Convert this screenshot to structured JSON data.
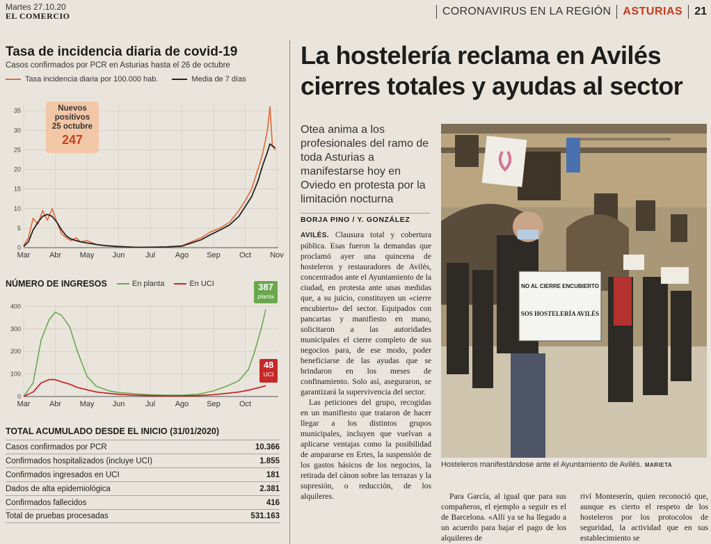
{
  "header": {
    "date": "Martes 27.10.20",
    "publication": "EL COMERCIO",
    "section": "CORONAVIRUS EN LA REGIÓN",
    "region": "ASTURIAS",
    "page": "21"
  },
  "incidence_chart": {
    "title": "Tasa de incidencia diaria de covid-19",
    "subtitle": "Casos confirmados por PCR en Asturias hasta el 26 de octubre",
    "legend_daily": "Tasa incidencia diaria por 100.000 hab.",
    "legend_avg": "Media de 7 días",
    "badge_label_1": "Nuevos",
    "badge_label_2": "positivos",
    "badge_label_3": "25 octubre",
    "badge_value": "247"
  },
  "admissions_chart": {
    "title": "NÚMERO DE INGRESOS",
    "legend_plant": "En planta",
    "legend_icu": "En UCI",
    "plant_value": "387",
    "plant_label": "planta",
    "icu_value": "48",
    "icu_label": "UCI"
  },
  "chart_data": [
    {
      "type": "line",
      "title": "Tasa de incidencia diaria de covid-19",
      "ylim": [
        0,
        37
      ],
      "yticks": [
        "0",
        "5",
        "10",
        "15",
        "20",
        "25",
        "30",
        "35"
      ],
      "xticks": [
        "Mar",
        "Abr",
        "May",
        "Jun",
        "Jul",
        "Ago",
        "Sep",
        "Oct",
        "Nov"
      ],
      "x": [
        0.0,
        0.15,
        0.3,
        0.45,
        0.6,
        0.75,
        0.9,
        1.05,
        1.2,
        1.35,
        1.5,
        1.65,
        1.8,
        2.0,
        2.3,
        2.6,
        3.0,
        3.5,
        4.0,
        4.5,
        5.0,
        5.3,
        5.6,
        5.9,
        6.2,
        6.5,
        6.8,
        7.0,
        7.2,
        7.4,
        7.55,
        7.7,
        7.78,
        7.86,
        7.95
      ],
      "series": [
        {
          "name": "Tasa incidencia diaria por 100.000 hab.",
          "values": [
            0.5,
            2.5,
            7.5,
            6.0,
            9.5,
            7.0,
            10.0,
            6.5,
            3.5,
            2.5,
            1.8,
            2.5,
            1.5,
            1.8,
            0.8,
            0.5,
            0.2,
            0.1,
            0.1,
            0.2,
            0.5,
            1.5,
            2.5,
            4.0,
            5.0,
            6.5,
            9.5,
            12.0,
            15.0,
            20.0,
            24.0,
            30.0,
            36.0,
            26.0,
            25.0
          ]
        },
        {
          "name": "Media de 7 días",
          "values": [
            0.3,
            1.5,
            4.5,
            6.5,
            8.0,
            8.5,
            8.0,
            6.5,
            4.5,
            3.0,
            2.2,
            1.8,
            1.5,
            1.2,
            0.8,
            0.5,
            0.3,
            0.1,
            0.1,
            0.2,
            0.4,
            1.2,
            2.0,
            3.3,
            4.5,
            5.8,
            8.0,
            10.5,
            13.0,
            17.0,
            21.0,
            24.5,
            26.5,
            26.0,
            25.5
          ]
        }
      ]
    },
    {
      "type": "line",
      "title": "NÚMERO DE INGRESOS",
      "ylim": [
        0,
        420
      ],
      "yticks": [
        "0",
        "100",
        "200",
        "300",
        "400"
      ],
      "xticks": [
        "Mar",
        "Abr",
        "May",
        "Jun",
        "Jul",
        "Ago",
        "Sep",
        "Oct"
      ],
      "x": [
        0.0,
        0.3,
        0.55,
        0.8,
        1.0,
        1.2,
        1.45,
        1.7,
        2.0,
        2.3,
        2.7,
        3.0,
        3.5,
        4.0,
        4.5,
        5.0,
        5.5,
        6.0,
        6.4,
        6.8,
        7.1,
        7.3,
        7.5,
        7.65
      ],
      "series": [
        {
          "name": "En planta",
          "values": [
            0,
            60,
            250,
            340,
            375,
            360,
            310,
            200,
            90,
            45,
            25,
            18,
            12,
            8,
            6,
            6,
            10,
            25,
            45,
            70,
            120,
            200,
            300,
            387
          ]
        },
        {
          "name": "En UCI",
          "values": [
            0,
            20,
            60,
            75,
            75,
            65,
            55,
            40,
            30,
            20,
            14,
            10,
            6,
            4,
            3,
            3,
            4,
            8,
            14,
            20,
            28,
            35,
            42,
            48
          ]
        }
      ]
    }
  ],
  "totals": {
    "title": "TOTAL ACUMULADO DESDE EL INICIO (31/01/2020)",
    "rows": [
      {
        "label": "Casos confirmados por PCR",
        "value": "10.366"
      },
      {
        "label": "Confirmados hospitalizados (incluye UCI)",
        "value": "1.855"
      },
      {
        "label": "Confirmados ingresados en UCI",
        "value": "181"
      },
      {
        "label": "Dados de alta epidemiológica",
        "value": "2.381"
      },
      {
        "label": "Confirmados fallecidos",
        "value": "416"
      },
      {
        "label": "Total de pruebas procesadas",
        "value": "531.163"
      }
    ]
  },
  "article": {
    "headline": "La hostelería reclama en Avilés cierres totales y ayudas al sector",
    "deck": "Otea anima a los profesionales del ramo de toda Asturias a manifestarse hoy en Oviedo en protesta por la limitación nocturna",
    "byline": "BORJA PINO / Y. GONZÁLEZ",
    "dateline": "AVILÉS.",
    "p1": "Clausura total y cobertura pública. Esas fueron la demandas que proclamó ayer una quincena de hosteleros y restauradores de Avilés, concentrados ante el Ayuntamiento de la ciudad, en protesta ante unas medidas que, a su juicio, constituyen un «cierre encubierto» del sector. Equipados con pancartas y manifiesto en mano, solicitaron a las autoridades municipales el cierre completo de sus negocios para, de ese modo, poder beneficiarse de las ayudas que se brindaron en los meses de confinamiento. Solo así, aseguraron, se garantizará la supervivencia del sector.",
    "p2": "Las peticiones del grupo, recogidas en un manifiesto que trataron de hacer llegar a los distintos grupos municipales, incluyen que vuelvan a aplicarse ventajas como la posibilidad de ampararse en Ertes, la suspensión de los gastos básicos de los negocios, la retirada del cánon sobre las terrazas y la supresión, o reducción, de los alquileres.",
    "photo_sign_1": "NO AL CIERRE ENCUBIERTO",
    "photo_sign_2": "SOS HOSTELERÍA AVILÉS",
    "caption": "Hosteleros manifestándose ante el Ayuntamiento de Avilés.",
    "caption_credit": "MARIETA",
    "cont1": "Para García, al igual que para sus compañeros, el ejemplo a seguir es el de Barcelona. «Allí ya se ha llegado a un acuerdo para bajar el pago de los alquileres de",
    "cont2": "riví Monteserín, quien reconoció que, aunque es cierto el respeto de los hosteleros por los protocolos de seguridad, la actividad que en sus establecimiento se"
  }
}
